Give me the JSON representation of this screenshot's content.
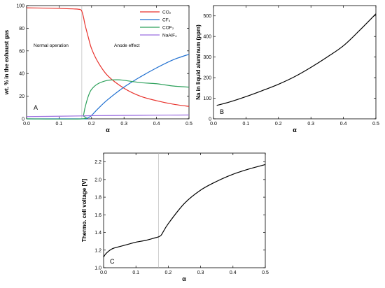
{
  "chart_data": [
    {
      "panel": "A",
      "type": "line",
      "xlabel": "α",
      "ylabel": "wt. % in the exhaust gas",
      "xlim": [
        0.0,
        0.5
      ],
      "ylim": [
        0,
        100
      ],
      "xticks": [
        "0.0",
        "0.1",
        "0.2",
        "0.3",
        "0.4",
        "0.5"
      ],
      "yticks": [
        "0",
        "20",
        "40",
        "60",
        "80",
        "100"
      ],
      "vline_x": 0.17,
      "annotations": [
        "Normal operation",
        "Anode effect"
      ],
      "legend_position": "top-right",
      "series": [
        {
          "name": "CO₂",
          "color": "#e8322c",
          "x": [
            0.0,
            0.05,
            0.1,
            0.15,
            0.165,
            0.17,
            0.175,
            0.18,
            0.19,
            0.2,
            0.22,
            0.25,
            0.3,
            0.35,
            0.4,
            0.45,
            0.5
          ],
          "y": [
            98,
            97.8,
            97.5,
            97,
            96.5,
            95,
            90,
            83,
            72,
            62,
            50,
            38,
            27,
            20,
            16,
            13,
            11
          ]
        },
        {
          "name": "CF₄",
          "color": "#1f6fd0",
          "x": [
            0.0,
            0.17,
            0.18,
            0.19,
            0.2,
            0.22,
            0.25,
            0.3,
            0.35,
            0.4,
            0.45,
            0.5
          ],
          "y": [
            0,
            0,
            0,
            1,
            3,
            9,
            17,
            28,
            37,
            45,
            52,
            57
          ]
        },
        {
          "name": "COF₂",
          "color": "#2ca05a",
          "x": [
            0.0,
            0.17,
            0.175,
            0.18,
            0.19,
            0.2,
            0.22,
            0.25,
            0.28,
            0.3,
            0.35,
            0.4,
            0.45,
            0.5
          ],
          "y": [
            0,
            0,
            3,
            10,
            20,
            26,
            31,
            34,
            34.5,
            34,
            32,
            31,
            29,
            28
          ]
        },
        {
          "name": "NaAlF₄",
          "color": "#9b6ee0",
          "x": [
            0.0,
            0.1,
            0.17,
            0.2,
            0.3,
            0.4,
            0.5
          ],
          "y": [
            2,
            2.3,
            2.6,
            2.8,
            3.0,
            3.2,
            3.4
          ]
        }
      ]
    },
    {
      "panel": "B",
      "type": "line",
      "xlabel": "α",
      "ylabel": "Na in liquid aluminum (ppm)",
      "xlim": [
        0.0,
        0.5
      ],
      "ylim": [
        0,
        550
      ],
      "xticks": [
        "0.0",
        "0.1",
        "0.2",
        "0.3",
        "0.4",
        "0.5"
      ],
      "yticks": [
        "0",
        "100",
        "200",
        "300",
        "400",
        "500"
      ],
      "series": [
        {
          "name": "",
          "color": "#000000",
          "x": [
            0.01,
            0.05,
            0.1,
            0.15,
            0.2,
            0.25,
            0.3,
            0.35,
            0.4,
            0.45,
            0.5
          ],
          "y": [
            65,
            82,
            108,
            137,
            168,
            205,
            250,
            300,
            355,
            430,
            510
          ]
        }
      ]
    },
    {
      "panel": "C",
      "type": "line",
      "xlabel": "α",
      "ylabel": "Thermo. cell voltage [V]",
      "xlim": [
        0.0,
        0.5
      ],
      "ylim": [
        1.0,
        2.3
      ],
      "xticks": [
        "0.0",
        "0.1",
        "0.2",
        "0.3",
        "0.4",
        "0.5"
      ],
      "yticks": [
        "1.0",
        "1.2",
        "1.4",
        "1.6",
        "1.8",
        "2.0",
        "2.2"
      ],
      "vline_x": 0.17,
      "series": [
        {
          "name": "",
          "color": "#000000",
          "x": [
            0.0,
            0.005,
            0.01,
            0.02,
            0.03,
            0.05,
            0.08,
            0.1,
            0.13,
            0.16,
            0.17,
            0.175,
            0.18,
            0.2,
            0.25,
            0.3,
            0.35,
            0.4,
            0.45,
            0.5
          ],
          "y": [
            1.12,
            1.15,
            1.17,
            1.2,
            1.22,
            1.24,
            1.27,
            1.29,
            1.31,
            1.34,
            1.35,
            1.36,
            1.38,
            1.5,
            1.73,
            1.88,
            1.98,
            2.06,
            2.12,
            2.17
          ]
        }
      ]
    }
  ]
}
